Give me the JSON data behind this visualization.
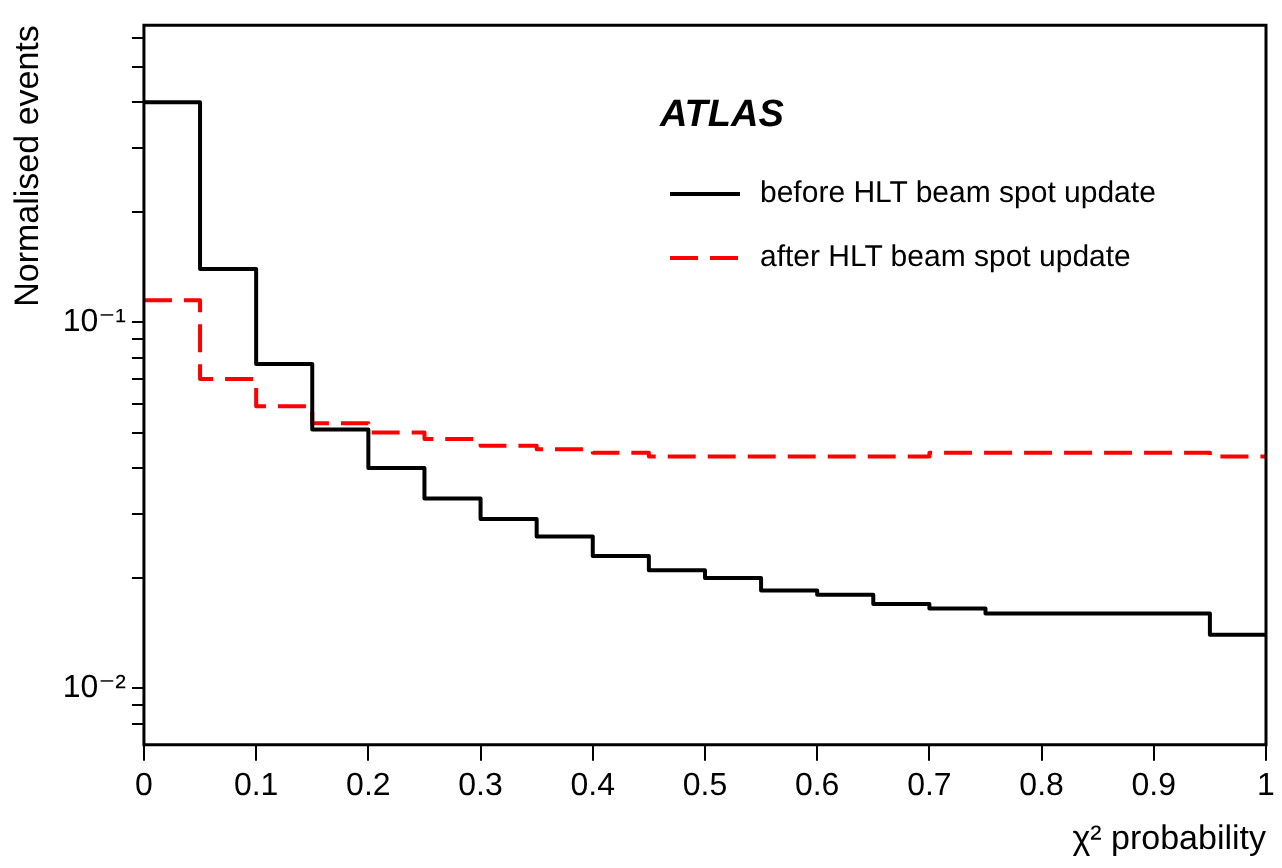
{
  "chart_data": {
    "type": "histogram",
    "xlabel": "χ² probability",
    "ylabel": "Normalised events",
    "annotations": [
      "ATLAS"
    ],
    "bins": [
      0,
      0.05,
      0.1,
      0.15,
      0.2,
      0.25,
      0.3,
      0.35,
      0.4,
      0.45,
      0.5,
      0.55,
      0.6,
      0.65,
      0.7,
      0.75,
      0.8,
      0.85,
      0.9,
      0.95,
      1
    ],
    "series": [
      {
        "name": "before HLT beam spot update",
        "color": "#000000",
        "line_style": "solid",
        "values": [
          0.4,
          0.14,
          0.077,
          0.051,
          0.04,
          0.033,
          0.029,
          0.026,
          0.023,
          0.021,
          0.02,
          0.0185,
          0.018,
          0.017,
          0.0165,
          0.016,
          0.016,
          0.016,
          0.016,
          0.014
        ]
      },
      {
        "name": "after HLT beam spot update",
        "color": "#ff0000",
        "line_style": "dashed",
        "values": [
          0.115,
          0.07,
          0.059,
          0.053,
          0.05,
          0.048,
          0.046,
          0.045,
          0.044,
          0.043,
          0.043,
          0.043,
          0.043,
          0.043,
          0.044,
          0.044,
          0.044,
          0.044,
          0.044,
          0.043
        ]
      }
    ],
    "log": "y",
    "ylim": [
      0.007,
      0.65
    ],
    "xlim": [
      0,
      1
    ],
    "xticks": [
      0,
      0.1,
      0.2,
      0.3,
      0.4,
      0.5,
      0.6,
      0.7,
      0.8,
      0.9,
      1
    ],
    "yticks": [
      {
        "value": 0.008,
        "label": null
      },
      {
        "value": 0.009,
        "label": null
      },
      {
        "value": 0.01,
        "label": "10⁻²"
      },
      {
        "value": 0.02,
        "label": null
      },
      {
        "value": 0.03,
        "label": null
      },
      {
        "value": 0.04,
        "label": null
      },
      {
        "value": 0.05,
        "label": null
      },
      {
        "value": 0.06,
        "label": null
      },
      {
        "value": 0.07,
        "label": null
      },
      {
        "value": 0.08,
        "label": null
      },
      {
        "value": 0.09,
        "label": null
      },
      {
        "value": 0.1,
        "label": "10⁻¹"
      },
      {
        "value": 0.2,
        "label": null
      },
      {
        "value": 0.3,
        "label": null
      },
      {
        "value": 0.4,
        "label": null
      },
      {
        "value": 0.5,
        "label": null
      },
      {
        "value": 0.6,
        "label": null
      }
    ],
    "grid": false,
    "legend": "top right"
  }
}
